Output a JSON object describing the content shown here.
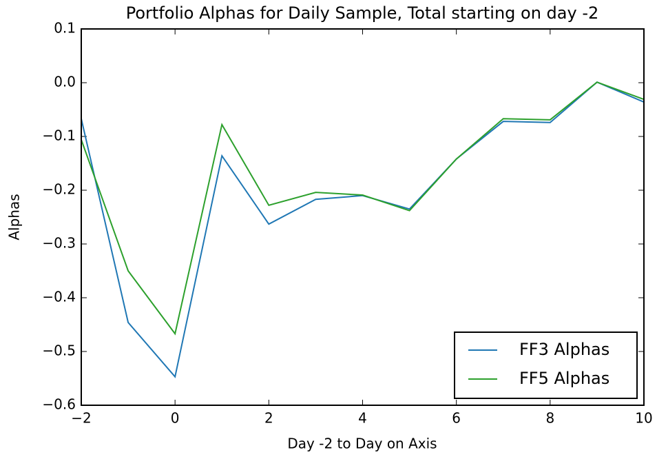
{
  "chart_data": {
    "type": "line",
    "title": "Portfolio Alphas for Daily Sample, Total starting on day -2",
    "x_label": "Day -2 to Day on Axis",
    "y_label": "Alphas",
    "x": [
      -2,
      -1,
      0,
      1,
      2,
      3,
      4,
      5,
      6,
      7,
      8,
      9,
      10
    ],
    "series": [
      {
        "name": "FF3 Alphas",
        "color": "#1f77b4",
        "values": [
          -0.067,
          -0.446,
          -0.547,
          -0.136,
          -0.263,
          -0.217,
          -0.21,
          -0.235,
          -0.142,
          -0.072,
          -0.074,
          0.001,
          -0.036
        ]
      },
      {
        "name": "FF5 Alphas",
        "color": "#2ca02c",
        "values": [
          -0.106,
          -0.35,
          -0.467,
          -0.078,
          -0.228,
          -0.204,
          -0.209,
          -0.238,
          -0.142,
          -0.067,
          -0.069,
          0.001,
          -0.031
        ]
      }
    ],
    "xlim": [
      -2,
      10
    ],
    "xticks": [
      {
        "value": -2,
        "label": "−2"
      },
      0,
      2,
      4,
      6,
      8,
      10
    ],
    "ylim": [
      -0.6,
      0.1
    ],
    "yticks": [
      {
        "value": -0.6,
        "label": "−0.6"
      },
      {
        "value": -0.5,
        "label": "−0.5"
      },
      {
        "value": -0.4,
        "label": "−0.4"
      },
      {
        "value": -0.3,
        "label": "−0.3"
      },
      {
        "value": -0.2,
        "label": "−0.2"
      },
      {
        "value": -0.1,
        "label": "−0.1"
      },
      {
        "value": 0,
        "label": "0.0"
      },
      0.1
    ],
    "legend": "lower right"
  }
}
